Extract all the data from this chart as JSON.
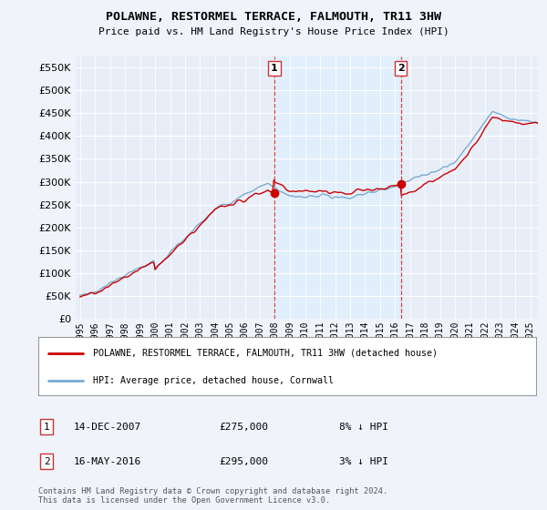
{
  "title": "POLAWNE, RESTORMEL TERRACE, FALMOUTH, TR11 3HW",
  "subtitle": "Price paid vs. HM Land Registry's House Price Index (HPI)",
  "legend_line1": "POLAWNE, RESTORMEL TERRACE, FALMOUTH, TR11 3HW (detached house)",
  "legend_line2": "HPI: Average price, detached house, Cornwall",
  "footnote": "Contains HM Land Registry data © Crown copyright and database right 2024.\nThis data is licensed under the Open Government Licence v3.0.",
  "sale1_date": "14-DEC-2007",
  "sale1_price": "£275,000",
  "sale1_hpi": "8% ↓ HPI",
  "sale2_date": "16-MAY-2016",
  "sale2_price": "£295,000",
  "sale2_hpi": "3% ↓ HPI",
  "sale1_year": 2007.95,
  "sale1_value": 275000,
  "sale2_year": 2016.37,
  "sale2_value": 295000,
  "ylim": [
    0,
    575000
  ],
  "xlim_start": 1994.7,
  "xlim_end": 2025.5,
  "color_red": "#cc0000",
  "color_blue": "#7aaad0",
  "color_dashed": "#cc3333",
  "color_shade": "#ddeeff",
  "background_color": "#f0f4fa",
  "plot_bg": "#e8eef8"
}
